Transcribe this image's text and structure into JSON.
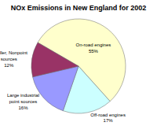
{
  "chart_data": {
    "type": "pie",
    "title": "NOx Emissions in New England for 2002",
    "categories": [
      "On-road engines",
      "Off-road engines",
      "Large industrial point sources",
      "Smaller, Nonpoint sources"
    ],
    "values": [
      55,
      17,
      16,
      12
    ],
    "value_labels": [
      "55%",
      "17%",
      "16%",
      "12%"
    ],
    "colors": [
      "#ffffcc",
      "#ccffff",
      "#9999ff",
      "#993366"
    ],
    "data_labels": true
  }
}
